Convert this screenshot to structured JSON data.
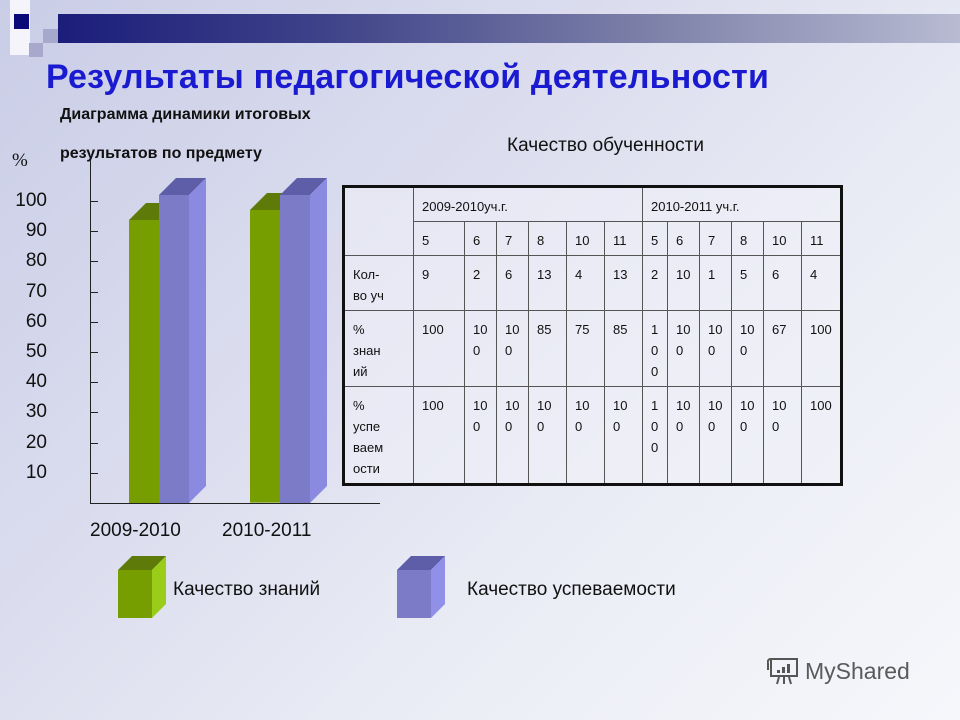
{
  "slide": {
    "title": "Результаты педагогической деятельности",
    "subtitle_line1": "Диаграмма динамики итоговых",
    "subtitle_line2": "результатов  по предмету",
    "table_title": "Качество обученности",
    "colors": {
      "title": "#1a1ad0",
      "green_bar": "#779e00",
      "blue_bar": "#7b7bc8"
    }
  },
  "chart_data": {
    "type": "bar",
    "title": "Диаграмма динамики итоговых результатов по предмету",
    "xlabel": "",
    "ylabel": "%",
    "categories": [
      "2009-2010",
      "2010-2011"
    ],
    "series": [
      {
        "name": "Качество знаний",
        "color": "#779e00",
        "values": [
          92,
          95
        ]
      },
      {
        "name": "Качество успеваемости",
        "color": "#7b7bc8",
        "values": [
          100,
          100
        ]
      }
    ],
    "y_ticks": [
      "100",
      "90",
      "80",
      "70",
      "60",
      "50",
      "40",
      "30",
      "20",
      "10"
    ],
    "ylim": [
      0,
      100
    ],
    "grid": false,
    "legend_position": "bottom",
    "style": "3d-column"
  },
  "legend": {
    "green_label": "Качество знаний",
    "blue_label": "Качество успеваемости"
  },
  "table": {
    "year_headers": [
      "2009-2010уч.г.",
      "2010-2011 уч.г."
    ],
    "grades": [
      "5",
      "6",
      "7",
      "8",
      "10",
      "11",
      "5",
      "6",
      "7",
      "8",
      "10",
      "11"
    ],
    "rows": [
      {
        "label": "Кол-\nво уч",
        "values": [
          "9",
          "2",
          "6",
          "13",
          "4",
          "13",
          "2",
          "10",
          "1",
          "5",
          "6",
          "4"
        ]
      },
      {
        "label": "%\nзнан\nий",
        "values": [
          "100",
          "10\n0",
          "10\n0",
          "85",
          "75",
          "85",
          "1\n0\n0",
          "10\n0",
          "10\n0",
          "10\n0",
          "67",
          "100"
        ]
      },
      {
        "label": "%\nуспе\nваем\nости",
        "values": [
          "100",
          "10\n0",
          "10\n0",
          "10\n0",
          "10\n0",
          "10\n0",
          "1\n0\n0",
          "10\n0",
          "10\n0",
          "10\n0",
          "10\n0",
          "100"
        ]
      }
    ]
  },
  "watermark": {
    "text": "MyShared",
    "icon": "presentation-board-icon"
  }
}
